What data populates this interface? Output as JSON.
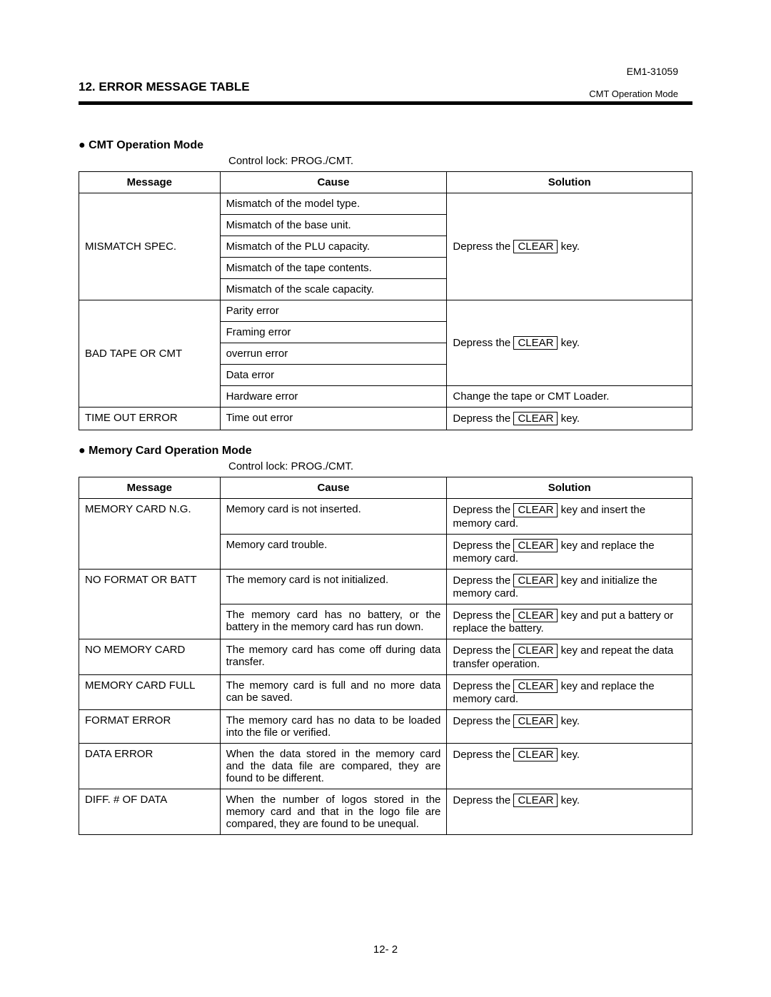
{
  "doc_id": "EM1-31059",
  "section_number": "12.",
  "section_title": "ERROR MESSAGE TABLE",
  "header_mode": "CMT Operation Mode",
  "page_number": "12- 2",
  "control_lock_label": "Control lock:  PROG./CMT.",
  "key_clear": "CLEAR",
  "columns": {
    "message": "Message",
    "cause": "Cause",
    "solution": "Solution"
  },
  "cmt": {
    "heading": "CMT Operation Mode",
    "rows": {
      "mismatch_msg": "MISMATCH SPEC.",
      "mismatch_causes": [
        "Mismatch of the model type.",
        "Mismatch of the base unit.",
        "Mismatch of the PLU capacity.",
        "Mismatch of the tape contents.",
        "Mismatch of the scale capacity."
      ],
      "mismatch_solution_pre": "Depress the ",
      "mismatch_solution_post": " key.",
      "badtape_msg": "BAD TAPE OR CMT",
      "badtape_causes_a": [
        "Parity error",
        "Framing error",
        "overrun error",
        "Data error"
      ],
      "badtape_solution_a_pre": "Depress the ",
      "badtape_solution_a_post": " key.",
      "badtape_cause_b": "Hardware error",
      "badtape_solution_b": "Change the tape or CMT Loader.",
      "timeout_msg": "TIME OUT ERROR",
      "timeout_cause": "Time out error",
      "timeout_solution_pre": "Depress the ",
      "timeout_solution_post": " key."
    }
  },
  "mem": {
    "heading": "Memory Card Operation Mode",
    "rows": [
      {
        "msg": "MEMORY CARD N.G.",
        "msg_rowspan": 2,
        "cause": "Memory card is not inserted.",
        "sol_pre": "Depress the ",
        "sol_post": " key and insert the memory card."
      },
      {
        "cause": "Memory card trouble.",
        "sol_pre": "Depress the ",
        "sol_post": " key and replace the memory card."
      },
      {
        "msg": "NO FORMAT OR BATT",
        "msg_rowspan": 2,
        "cause": "The memory card is not initialized.",
        "sol_pre": "Depress the ",
        "sol_post": " key and initialize the memory card."
      },
      {
        "cause": "The memory card has no battery, or the battery in the memory card has run down.",
        "cause_justify": true,
        "sol_pre": "Depress the ",
        "sol_post": " key and put a battery or replace the battery."
      },
      {
        "msg": "NO MEMORY CARD",
        "cause": "The memory card has come off during data transfer.",
        "cause_justify": true,
        "sol_pre": "Depress the ",
        "sol_post": " key and repeat the data transfer operation."
      },
      {
        "msg": "MEMORY CARD FULL",
        "cause": "The memory card is full and no more data can be saved.",
        "cause_justify": true,
        "sol_pre": "Depress the ",
        "sol_post": " key and replace the memory card."
      },
      {
        "msg": "FORMAT ERROR",
        "cause": "The memory card has no data to be loaded into the file or verified.",
        "cause_justify": true,
        "sol_pre": "Depress the ",
        "sol_post": " key."
      },
      {
        "msg": "DATA ERROR",
        "cause": "When the data stored in the memory card and the data file are compared, they are found to be different.",
        "cause_justify": true,
        "sol_pre": "Depress the ",
        "sol_post": " key."
      },
      {
        "msg": "DIFF. # OF DATA",
        "cause": "When the number of logos stored in the memory card and that in the logo file are compared, they are found to be unequal.",
        "cause_justify": true,
        "sol_pre": "Depress the ",
        "sol_post": " key."
      }
    ]
  }
}
